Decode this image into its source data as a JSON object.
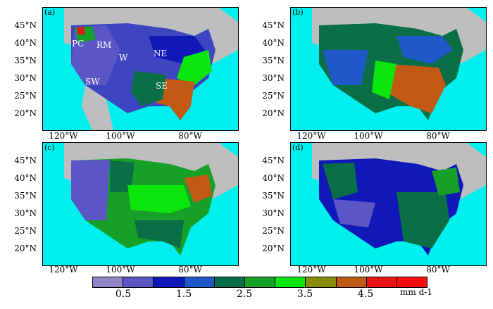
{
  "panels": [
    {
      "label": "(a)",
      "regions": [
        "PC",
        "RM",
        "W",
        "NE",
        "SW",
        "SE"
      ]
    },
    {
      "label": "(b)"
    },
    {
      "label": "(c)"
    },
    {
      "label": "(d)"
    }
  ],
  "lat_ticks": [
    "45°N",
    "40°N",
    "35°N",
    "30°N",
    "25°N",
    "20°N"
  ],
  "lon_ticks": [
    "120°W",
    "100°W",
    "80°W"
  ],
  "colorbar": {
    "colors": [
      "#8f86c6",
      "#5c55c6",
      "#1018b8",
      "#1f58c8",
      "#0a6e46",
      "#16a028",
      "#0ce60c",
      "#8b8b0a",
      "#c05a14",
      "#e81414",
      "#fa0a0a"
    ],
    "tick_labels": [
      "0.5",
      "1.5",
      "2.5",
      "3.5",
      "4.5"
    ],
    "unit": "mm d-1"
  },
  "colors": {
    "ocean": "#00f0f0",
    "land_outside": "#bebebe",
    "grid": "#000000"
  }
}
